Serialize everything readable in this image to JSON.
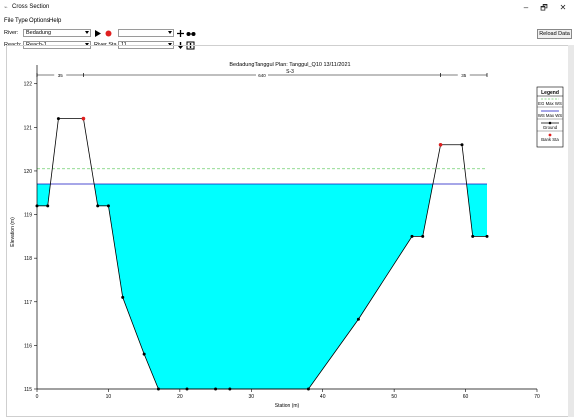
{
  "window": {
    "title": "Cross Section",
    "buttons": {
      "minimize": "–",
      "maximize": "🗗",
      "close": "✕"
    }
  },
  "menu": [
    "File",
    "Type",
    "Options",
    "Help"
  ],
  "toolbar": {
    "river_label": "River:",
    "river_value": "Bedadung",
    "reach_label": "Reach:",
    "reach_value": "Reach-1",
    "river_sta_label": "River Sta.:",
    "river_sta_value": "11",
    "reload_label": "Reload Data",
    "icons": [
      "play-icon",
      "record-icon",
      "add-icon",
      "glasses-icon",
      "down-arrow-icon",
      "expand-icon"
    ],
    "colors": {
      "record": "#e02020",
      "play": "#000000"
    }
  },
  "chart_data": {
    "type": "area",
    "title": "BedadungTanggul      Plan: Tanggul_Q10    13/11/2021",
    "subtitle": "S-3",
    "xlabel": "Station (m)",
    "ylabel": "Elevation (m)",
    "xlim": [
      0,
      70
    ],
    "ylim": [
      115,
      122.2
    ],
    "x_ticks": [
      0,
      10,
      20,
      30,
      40,
      50,
      60,
      70
    ],
    "y_ticks": [
      115,
      116,
      117,
      118,
      119,
      120,
      121,
      122
    ],
    "grid": false,
    "legend_position": "right",
    "legend": {
      "title": "Legend",
      "items": [
        {
          "label": "EG Max WS",
          "color": "#6fcf6f",
          "style": "dashed"
        },
        {
          "label": "WS Max WS",
          "color": "#1010c0",
          "style": "solid"
        },
        {
          "label": "Ground",
          "color": "#000000",
          "style": "line-marker"
        },
        {
          "label": "Bank Sta",
          "color": "#e02020",
          "style": "marker"
        }
      ]
    },
    "series": [
      {
        "name": "Ground",
        "points": [
          [
            0,
            119.2
          ],
          [
            1.5,
            119.2
          ],
          [
            3,
            121.2
          ],
          [
            6.5,
            121.2
          ],
          [
            8.5,
            119.2
          ],
          [
            10,
            119.2
          ],
          [
            12,
            117.1
          ],
          [
            15,
            115.8
          ],
          [
            17,
            115
          ],
          [
            21,
            115
          ],
          [
            25,
            115
          ],
          [
            27,
            115
          ],
          [
            38,
            115
          ],
          [
            45,
            116.6
          ],
          [
            52.5,
            118.5
          ],
          [
            54,
            118.5
          ],
          [
            56.5,
            120.6
          ],
          [
            59.5,
            120.6
          ],
          [
            61,
            118.5
          ],
          [
            63,
            118.5
          ]
        ]
      }
    ],
    "water_surface": 119.7,
    "energy_grade": 120.05,
    "bank_stations": [
      [
        6.5,
        121.2
      ],
      [
        56.5,
        120.6
      ]
    ],
    "reach_lengths": {
      "labels": [
        "35",
        "640",
        "35"
      ],
      "stations": [
        0,
        6.5,
        56.5,
        63
      ],
      "elevation": 122.2
    }
  }
}
